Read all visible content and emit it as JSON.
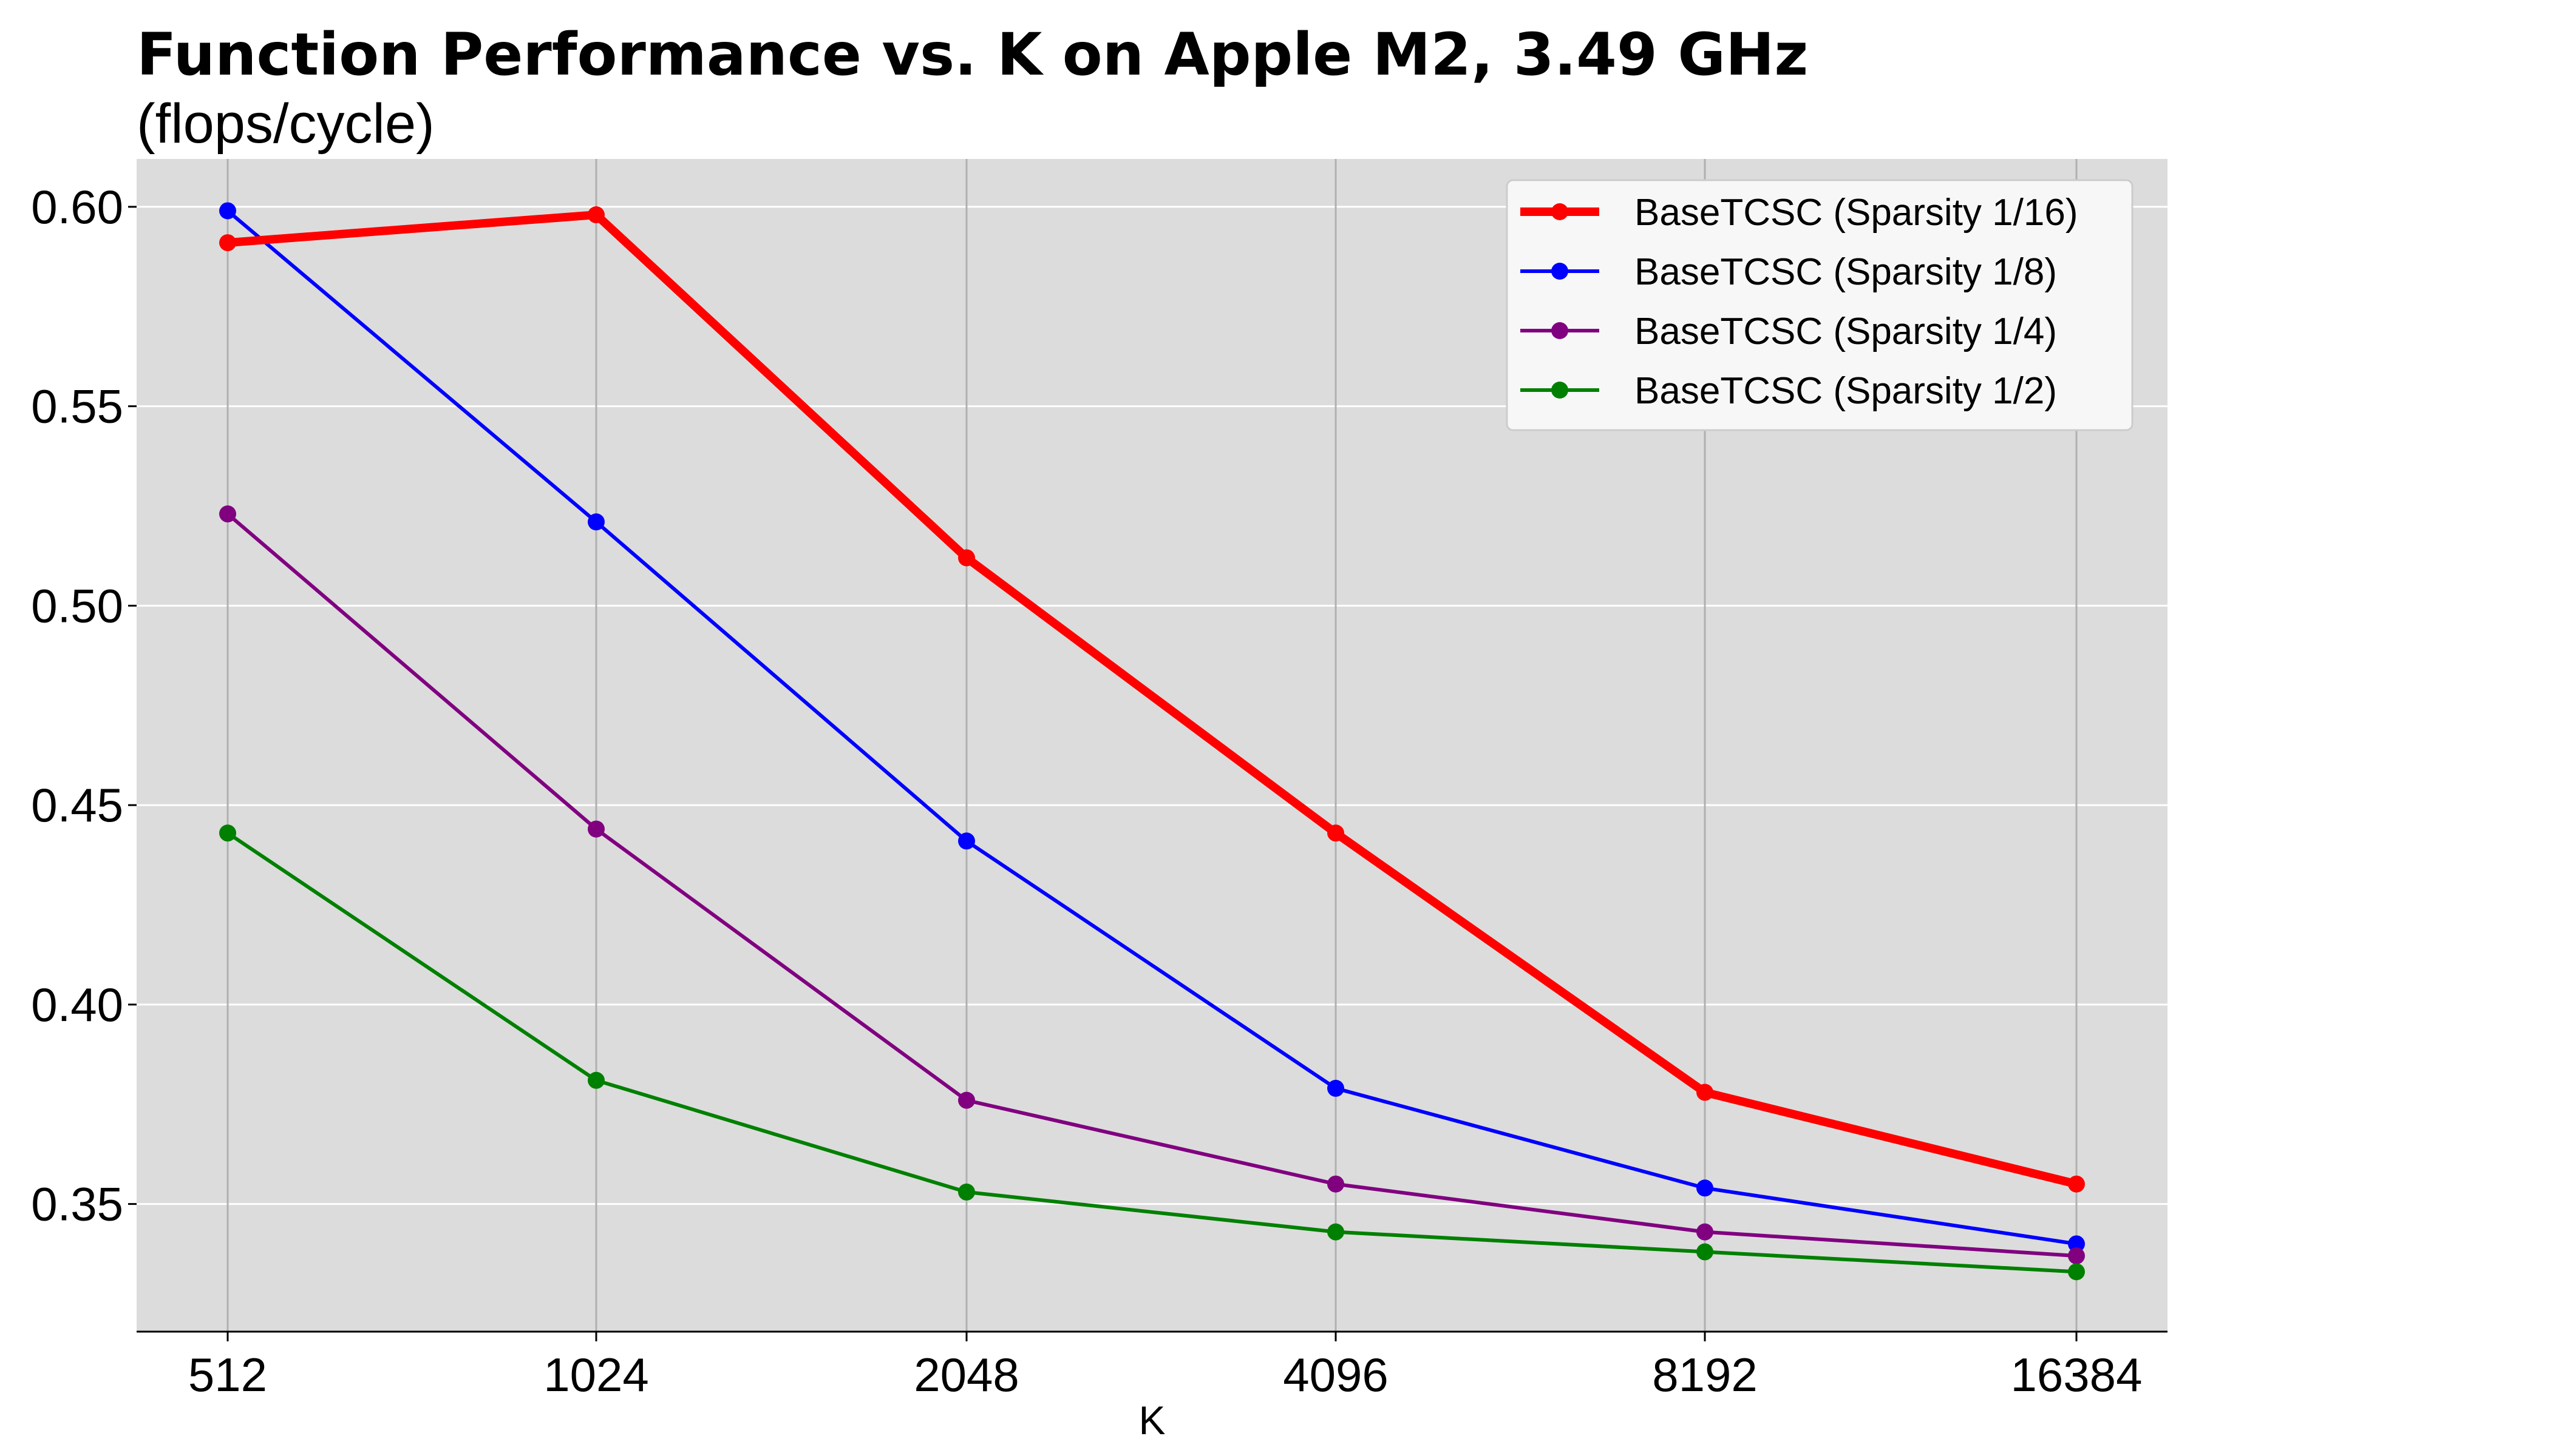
{
  "title": "Function Performance vs.  K on Apple M2,  3.49 GHz",
  "subtitle": "(flops/cycle)",
  "colors": {
    "plot_background": "#dcdcdc",
    "grid": "#ffffff",
    "vertical_grid": "#b0b0b0",
    "legend_background": "#f7f7f7"
  },
  "chart_data": {
    "type": "line",
    "title": "Function Performance vs.  K on Apple M2,  3.49 GHz",
    "subtitle": "(flops/cycle)",
    "xlabel": "K",
    "ylabel": "",
    "categories": [
      "512",
      "1024",
      "2048",
      "4096",
      "8192",
      "16384"
    ],
    "ylim": [
      0.318,
      0.612
    ],
    "yticks": [
      0.35,
      0.4,
      0.45,
      0.5,
      0.55,
      0.6
    ],
    "ytick_labels": [
      "0.35",
      "0.40",
      "0.45",
      "0.50",
      "0.55",
      "0.60"
    ],
    "grid": "horizontal white lines, vertical gray lines",
    "legend_position": "top-right",
    "series": [
      {
        "name": "BaseTCSC (Sparsity 1/16)",
        "color": "#ff0000",
        "emphasis": "thick",
        "values": [
          0.591,
          0.598,
          0.512,
          0.443,
          0.378,
          0.355
        ]
      },
      {
        "name": "BaseTCSC (Sparsity 1/8)",
        "color": "#0000ff",
        "emphasis": "normal",
        "values": [
          0.599,
          0.521,
          0.441,
          0.379,
          0.354,
          0.34
        ]
      },
      {
        "name": "BaseTCSC (Sparsity 1/4)",
        "color": "#800080",
        "emphasis": "normal",
        "values": [
          0.523,
          0.444,
          0.376,
          0.355,
          0.343,
          0.337
        ]
      },
      {
        "name": "BaseTCSC (Sparsity 1/2)",
        "color": "#008000",
        "emphasis": "normal",
        "values": [
          0.443,
          0.381,
          0.353,
          0.343,
          0.338,
          0.333
        ]
      }
    ]
  }
}
